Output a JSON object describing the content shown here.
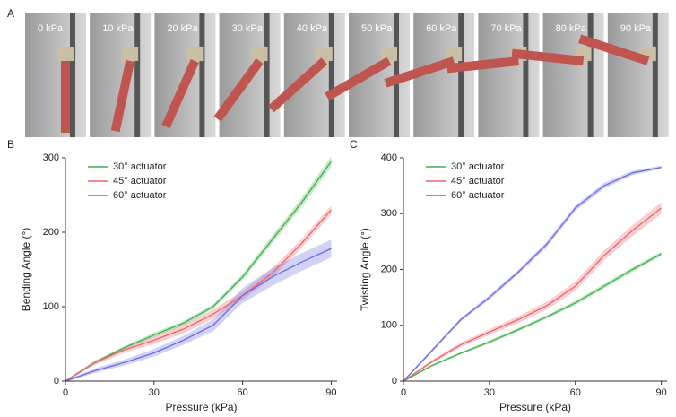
{
  "panel_a": {
    "label": "A",
    "frames": [
      "0 kPa",
      "10 kPa",
      "20 kPa",
      "30 kPa",
      "40 kPa",
      "50 kPa",
      "60 kPa",
      "70 kPa",
      "80 kPa",
      "90 kPa"
    ]
  },
  "chart_data": [
    {
      "type": "line",
      "panel": "B",
      "x_label": "Pressure (kPa)",
      "y_label": "Bending Angle (°)",
      "x": [
        0,
        10,
        20,
        30,
        40,
        50,
        60,
        70,
        80,
        90
      ],
      "xlim": [
        0,
        92
      ],
      "xticks": [
        0,
        30,
        60,
        90
      ],
      "ylim": [
        0,
        300
      ],
      "yticks": [
        0,
        100,
        200,
        300
      ],
      "series": [
        {
          "name": "30° actuator",
          "color": "#3fb24a",
          "values": [
            0,
            25,
            45,
            62,
            78,
            100,
            140,
            190,
            240,
            295
          ],
          "error": [
            1,
            2,
            2,
            3,
            3,
            3,
            4,
            5,
            6,
            7
          ]
        },
        {
          "name": "45° actuator",
          "color": "#ec6468",
          "values": [
            0,
            25,
            42,
            55,
            70,
            90,
            115,
            145,
            185,
            230
          ],
          "error": [
            1,
            3,
            4,
            5,
            6,
            6,
            6,
            6,
            6,
            6
          ]
        },
        {
          "name": "60° actuator",
          "color": "#6a6ae6",
          "values": [
            0,
            14,
            25,
            38,
            55,
            75,
            115,
            140,
            160,
            178
          ],
          "error": [
            1,
            3,
            4,
            5,
            6,
            8,
            10,
            12,
            12,
            12
          ]
        }
      ]
    },
    {
      "type": "line",
      "panel": "C",
      "x_label": "Pressure (kPa)",
      "y_label": "Twisting Angle (°)",
      "x": [
        0,
        10,
        20,
        30,
        40,
        50,
        60,
        70,
        80,
        90
      ],
      "xlim": [
        0,
        92
      ],
      "xticks": [
        0,
        30,
        60,
        90
      ],
      "ylim": [
        0,
        400
      ],
      "yticks": [
        0,
        100,
        200,
        300,
        400
      ],
      "series": [
        {
          "name": "30° actuator",
          "color": "#3fb24a",
          "values": [
            0,
            28,
            50,
            70,
            92,
            115,
            140,
            170,
            200,
            228
          ],
          "error": [
            1,
            2,
            2,
            3,
            3,
            3,
            4,
            4,
            4,
            4
          ]
        },
        {
          "name": "45° actuator",
          "color": "#ec6468",
          "values": [
            0,
            35,
            65,
            88,
            110,
            135,
            170,
            225,
            270,
            310
          ],
          "error": [
            1,
            3,
            4,
            5,
            6,
            7,
            8,
            9,
            10,
            10
          ]
        },
        {
          "name": "60° actuator",
          "color": "#6a6ae6",
          "values": [
            0,
            55,
            110,
            150,
            195,
            245,
            310,
            350,
            373,
            383
          ],
          "error": [
            1,
            3,
            3,
            4,
            4,
            5,
            5,
            5,
            4,
            3
          ]
        }
      ]
    }
  ]
}
